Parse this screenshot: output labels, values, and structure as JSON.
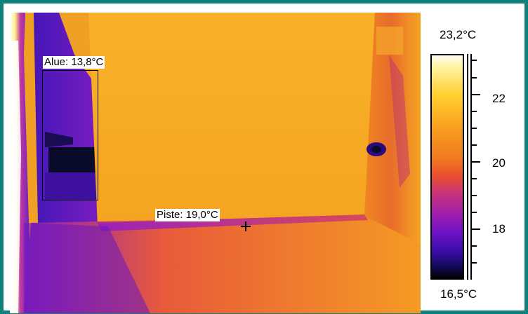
{
  "measurements": {
    "area_label": "Alue: 13,8°C",
    "spot_label": "Piste: 19,0°C"
  },
  "scale": {
    "max_label": "23,2°C",
    "min_label": "16,5°C",
    "ticks": [
      "22",
      "20",
      "18"
    ]
  },
  "colors": {
    "frame": "#12807a",
    "wall": "#f39a22",
    "cold": "#120a55"
  }
}
